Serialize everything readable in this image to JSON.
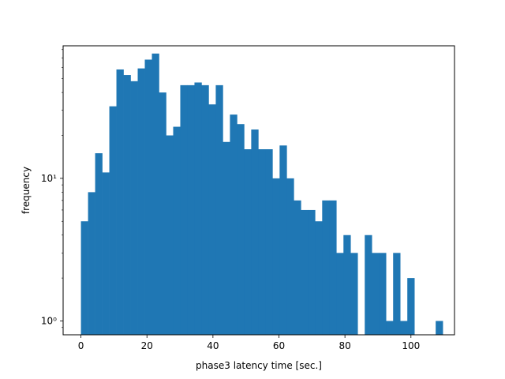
{
  "chart_data": {
    "type": "bar",
    "scale_y": "log",
    "xlabel": "phase3 latency time [sec.]",
    "ylabel": "frequency",
    "xlim": [
      -5.4,
      113.2
    ],
    "ylim": [
      0.8,
      85
    ],
    "bar_color": "#1f77b4",
    "grid": false,
    "bin_width": 2.15,
    "bin_start": 0.0,
    "values": [
      5,
      8,
      15,
      11,
      32,
      58,
      53,
      48,
      59,
      68,
      75,
      40,
      20,
      23,
      45,
      45,
      47,
      45,
      33,
      45,
      18,
      28,
      24,
      16,
      22,
      16,
      16,
      10,
      17,
      10,
      7,
      6,
      6,
      5,
      7,
      7,
      3,
      4,
      3,
      0,
      4,
      3,
      3,
      1,
      3,
      1,
      2,
      0,
      0,
      0,
      1
    ],
    "x_ticks": [
      0,
      20,
      40,
      60,
      80,
      100
    ],
    "x_tick_labels": [
      "0",
      "20",
      "40",
      "60",
      "80",
      "100"
    ],
    "y_ticks": [
      1,
      10
    ],
    "y_tick_labels": [
      "10⁰",
      "10¹"
    ]
  }
}
